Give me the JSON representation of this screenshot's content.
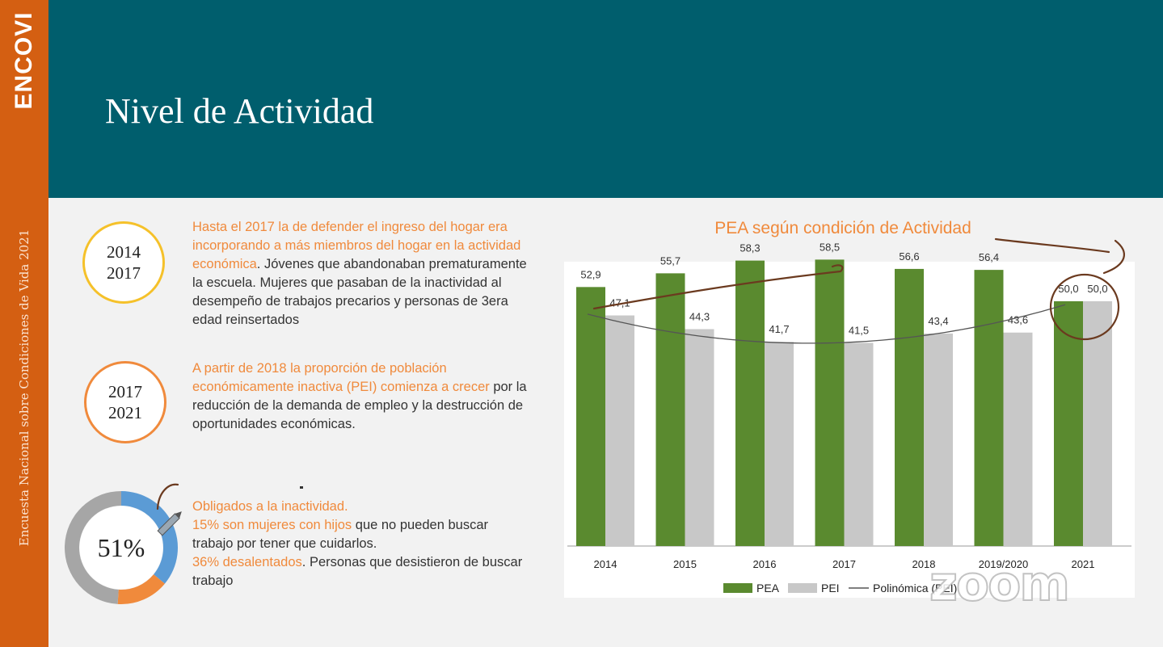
{
  "sidebar": {
    "brand": "ENCOVI",
    "vertical_text": "Encuesta Nacional sobre Condiciones de Vida 2021"
  },
  "header": {
    "title": "Nivel de Actividad"
  },
  "period1": {
    "line1": "2014",
    "line2": "2017",
    "text_highlight": "Hasta el 2017 la de defender el ingreso del hogar era incorporando a más miembros del hogar en la actividad económica",
    "text_rest": ". Jóvenes que abandonaban prematuramente la escuela. Mujeres que pasaban de la inactividad al desempeño de trabajos precarios y personas de 3era edad reinsertados"
  },
  "period2": {
    "line1": "2017",
    "line2": "2021",
    "text_highlight": "A partir de 2018 la proporción de población económicamente inactiva (PEI) comienza a crecer",
    "text_rest": " por la reducción de la demanda de empleo y la destrucción de oportunidades económicas."
  },
  "inactivity": {
    "percent_label": "51%",
    "heading": "Obligados a la inactividad.",
    "women_highlight": "15% son mujeres con hijos",
    "women_rest": " que no pueden buscar trabajo por tener que cuidarlos.",
    "discouraged_highlight": "36% desalentados",
    "discouraged_rest": ". Personas que desistieron de buscar trabajo",
    "segments": [
      {
        "value": 36,
        "color": "#5b9bd5"
      },
      {
        "value": 15,
        "color": "#f08a3c"
      },
      {
        "value": 49,
        "color": "#a6a6a6"
      }
    ]
  },
  "chart_data": {
    "type": "bar",
    "title": "PEA según condición de Actividad",
    "categories": [
      "2014",
      "2015",
      "2016",
      "2017",
      "2018",
      "2019/2020",
      "2021"
    ],
    "series": [
      {
        "name": "PEA",
        "color": "#5a8a2f",
        "values": [
          52.9,
          55.7,
          58.3,
          58.5,
          56.6,
          56.4,
          50.0
        ],
        "labels": [
          "52,9",
          "55,7",
          "58,3",
          "58,5",
          "56,6",
          "56,4",
          "50,0"
        ]
      },
      {
        "name": "PEI",
        "color": "#c8c8c8",
        "values": [
          47.1,
          44.3,
          41.7,
          41.5,
          43.4,
          43.6,
          50.0
        ],
        "labels": [
          "47,1",
          "44,3",
          "41,7",
          "41,5",
          "43,4",
          "43,6",
          "50,0"
        ]
      }
    ],
    "trendline": {
      "name": "Polinómica (PEI)",
      "type": "polynomial"
    },
    "ylim": [
      0,
      65
    ],
    "grid": false,
    "legend": "bottom"
  },
  "watermark": "zoom"
}
